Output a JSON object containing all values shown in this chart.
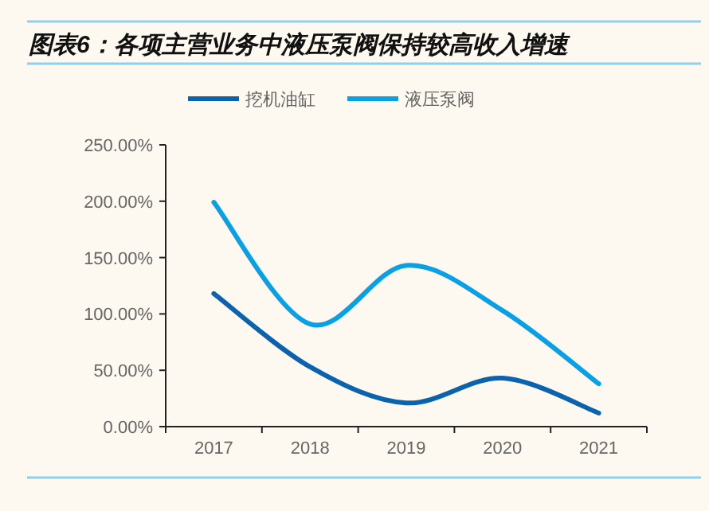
{
  "chart_data": {
    "type": "line",
    "title": "图表6：各项主营业务中液压泵阀保持较高收入增速",
    "categories": [
      "2017",
      "2018",
      "2019",
      "2020",
      "2021"
    ],
    "series": [
      {
        "name": "挖机油缸",
        "color": "#0b63ad",
        "values": [
          118,
          53,
          21,
          43,
          12
        ]
      },
      {
        "name": "液压泵阀",
        "color": "#0aa0e6",
        "values": [
          199,
          91,
          143,
          103,
          38
        ]
      }
    ],
    "ylim": [
      0,
      250
    ],
    "yticks": [
      {
        "value": 0,
        "label": "0.00%"
      },
      {
        "value": 50,
        "label": "50.00%"
      },
      {
        "value": 100,
        "label": "100.00%"
      },
      {
        "value": 150,
        "label": "150.00%"
      },
      {
        "value": 200,
        "label": "200.00%"
      },
      {
        "value": 250,
        "label": "250.00%"
      }
    ],
    "legend": "top",
    "grid": false,
    "marker": "none",
    "line_style": "solid"
  }
}
